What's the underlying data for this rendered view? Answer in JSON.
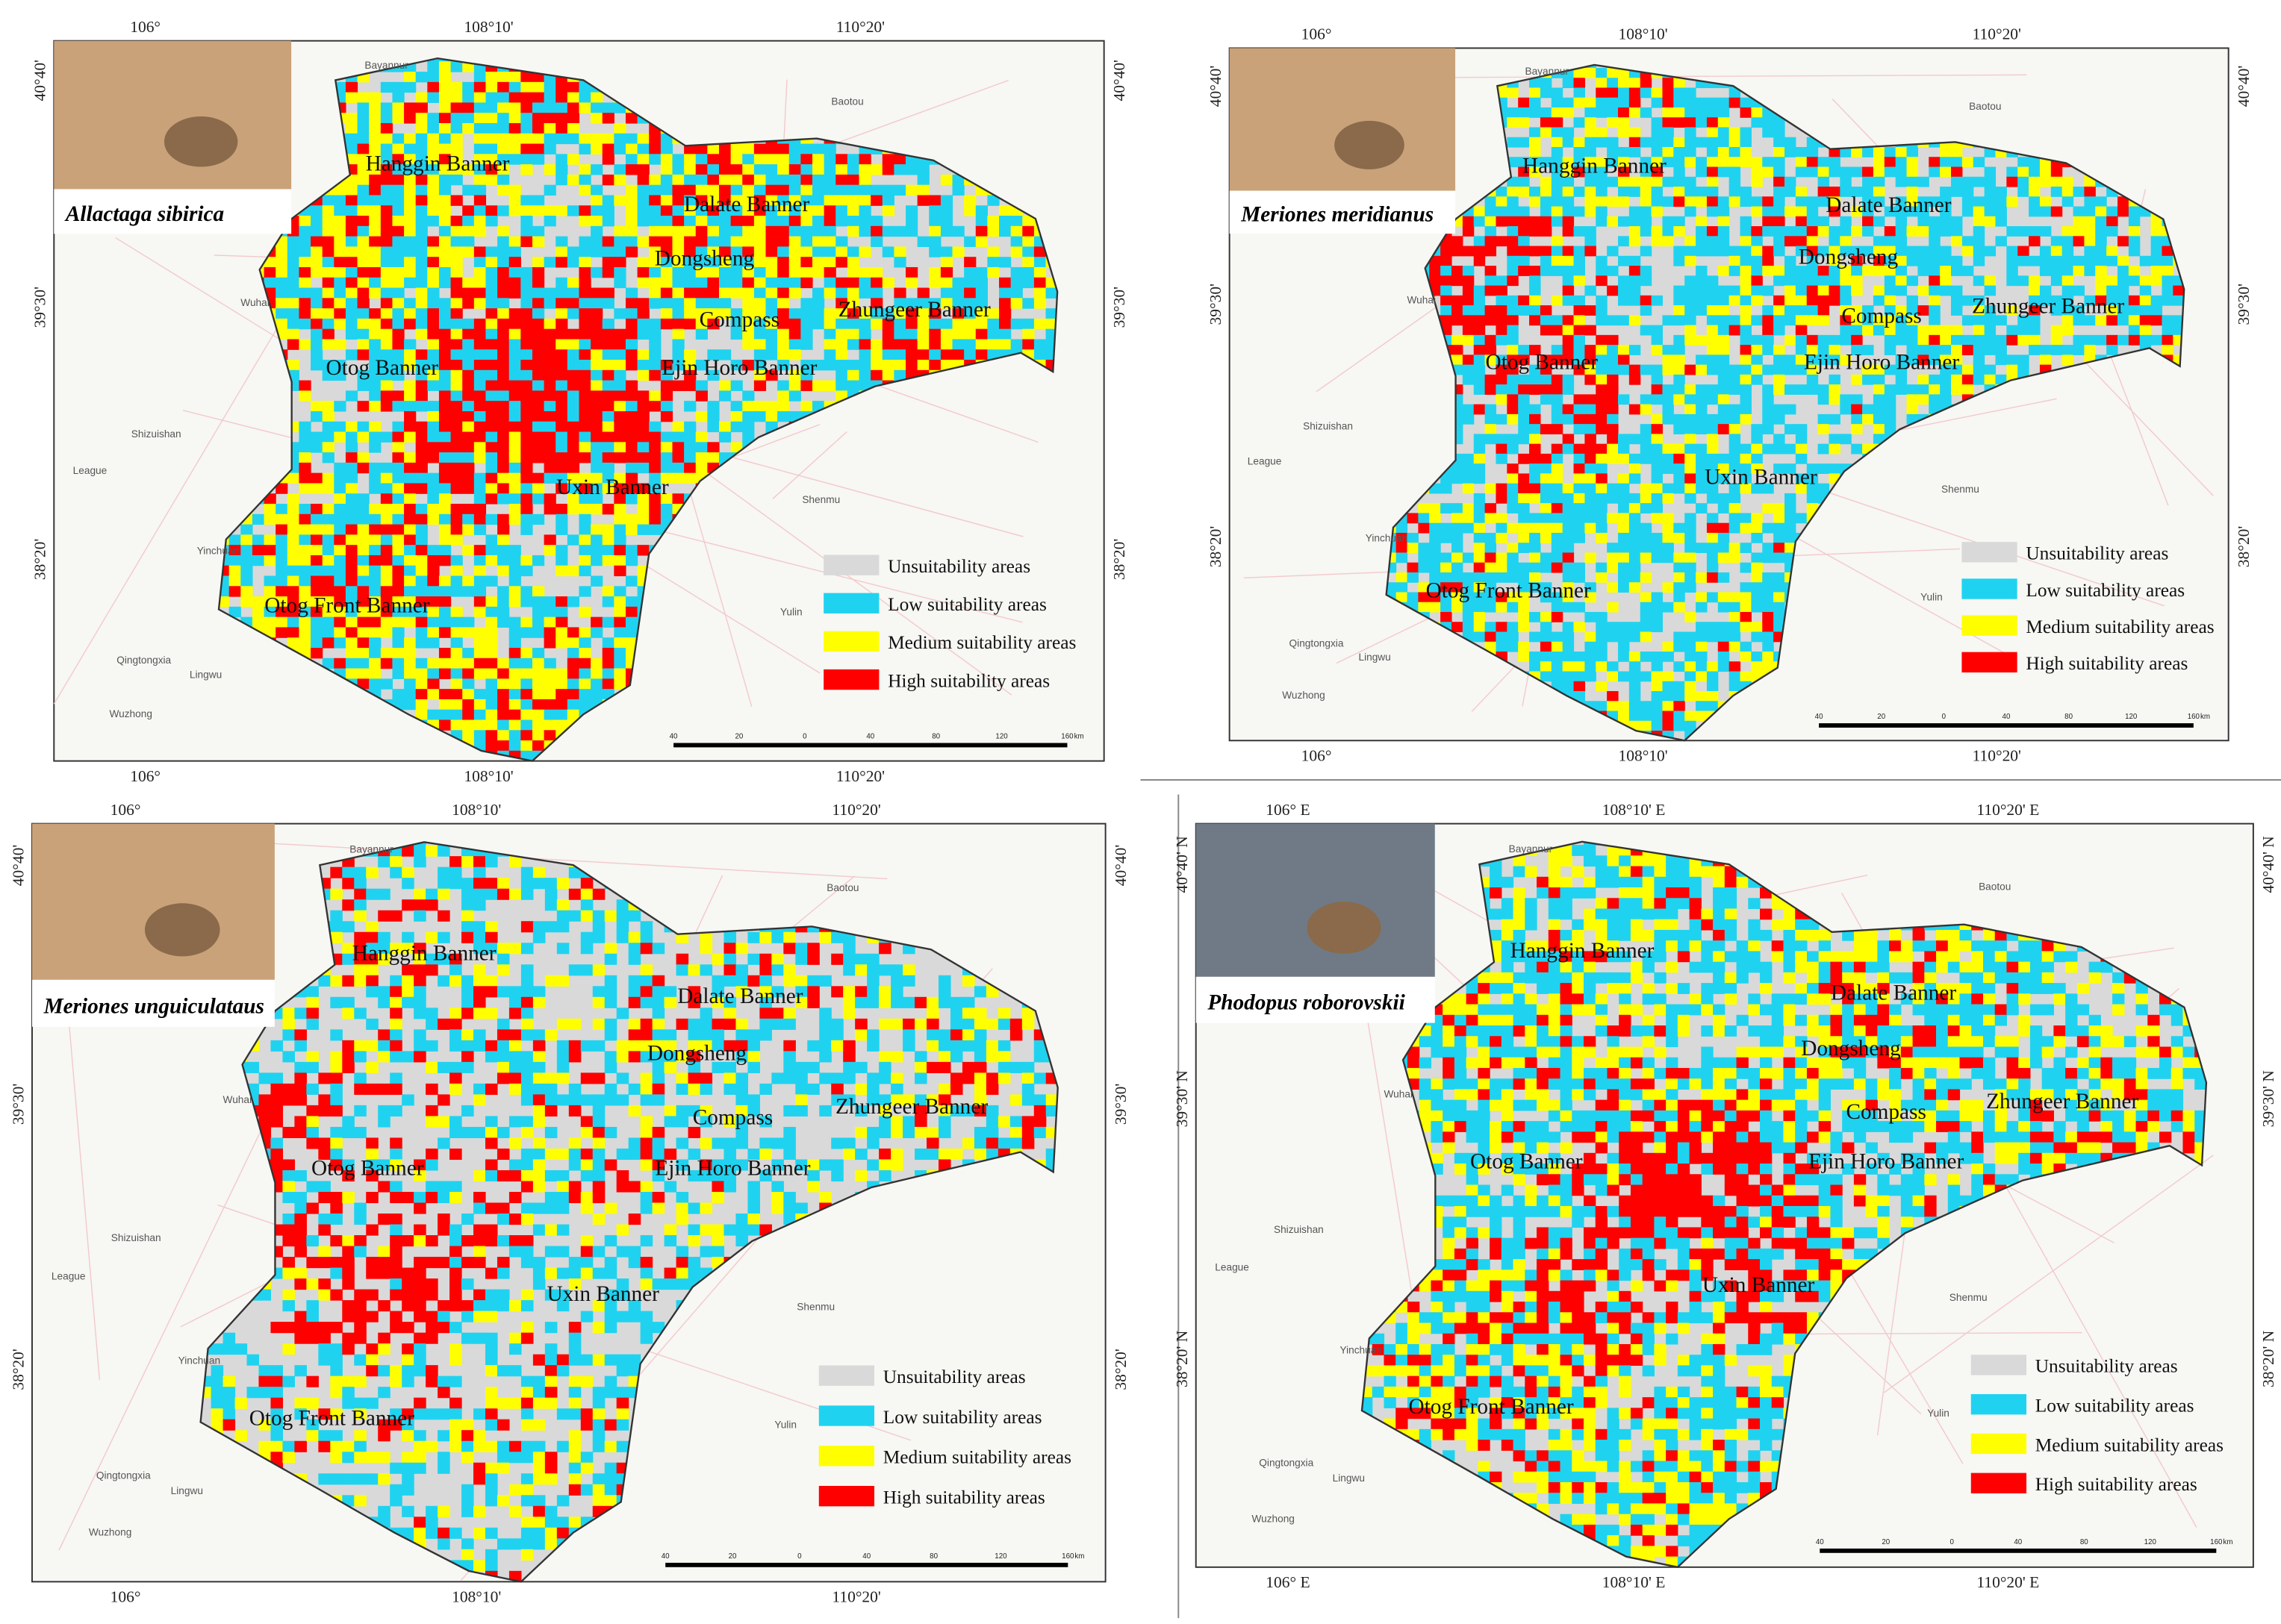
{
  "panels": [
    {
      "species": "Allactaga sibirica",
      "top_labels": [
        "106°",
        "108°10'",
        "110°20'"
      ],
      "bottom_labels": [
        "106°",
        "108°10'",
        "110°20'"
      ],
      "left_labels": [
        "40°40'",
        "39°30'",
        "38°20'"
      ],
      "right_labels": [
        "40°40'",
        "39°30'",
        "38°20'"
      ],
      "regions": [
        "Hanggin Banner",
        "Dalate Banner",
        "Dongsheng",
        "Compass",
        "Zhungeer Banner",
        "Otog Banner",
        "Ejin Horo Banner",
        "Uxin Banner",
        "Otog Front Banner"
      ]
    },
    {
      "species": "Meriones meridianus",
      "top_labels": [
        "106°",
        "108°10'",
        "110°20'"
      ],
      "bottom_labels": [
        "106°",
        "108°10'",
        "110°20'"
      ],
      "left_labels": [
        "40°40'",
        "39°30'",
        "38°20'"
      ],
      "right_labels": [
        "40°40'",
        "39°30'",
        "38°20'"
      ],
      "regions": [
        "Hanggin Banner",
        "Dalate Banner",
        "Dongsheng",
        "Compass",
        "Zhungeer Banner",
        "Otog Banner",
        "Ejin Horo Banner",
        "Uxin Banner",
        "Otog Front Banner"
      ]
    },
    {
      "species": "Meriones unguiculataus",
      "top_labels": [
        "106°",
        "108°10'",
        "110°20'"
      ],
      "bottom_labels": [
        "106°",
        "108°10'",
        "110°20'"
      ],
      "left_labels": [
        "40°40'",
        "39°30'",
        "38°20'"
      ],
      "right_labels": [
        "40°40'",
        "39°30'",
        "38°20'"
      ],
      "regions": [
        "Hanggin Banner",
        "Dalate Banner",
        "Dongsheng",
        "Compass",
        "Zhungeer Banner",
        "Otog Banner",
        "Ejin Horo Banner",
        "Uxin Banner",
        "Otog Front Banner"
      ]
    },
    {
      "species": "Phodopus roborovskii",
      "top_labels": [
        "106° E",
        "108°10' E",
        "110°20' E"
      ],
      "bottom_labels": [
        "106° E",
        "108°10' E",
        "110°20' E"
      ],
      "left_labels": [
        "40°40' N",
        "39°30' N",
        "38°20' N"
      ],
      "right_labels": [
        "40°40' N",
        "39°30' N",
        "38°20' N"
      ],
      "regions": [
        "Hanggin Banner",
        "Dalate Banner",
        "Dongsheng",
        "Compass",
        "Zhungeer Banner",
        "Otog Banner",
        "Ejin Horo Banner",
        "Uxin Banner",
        "Otog Front Banner"
      ]
    }
  ],
  "places": [
    "Bayannur",
    "Baotou",
    "Wuhai",
    "Shizuishan",
    "League",
    "Yinchuan",
    "Qingtongxia",
    "Lingwu",
    "Wuzhong",
    "Shenmu",
    "Yulin"
  ],
  "legend": [
    {
      "label": "Unsuitability areas",
      "color": "#d9d9d9"
    },
    {
      "label": "Low suitability areas",
      "color": "#1fd3f0"
    },
    {
      "label": "Medium suitability areas",
      "color": "#ffff00"
    },
    {
      "label": "High suitability areas",
      "color": "#ff0000"
    }
  ],
  "scale_labels": [
    "40",
    "20",
    "0",
    "40",
    "80",
    "120",
    "160",
    "km"
  ]
}
